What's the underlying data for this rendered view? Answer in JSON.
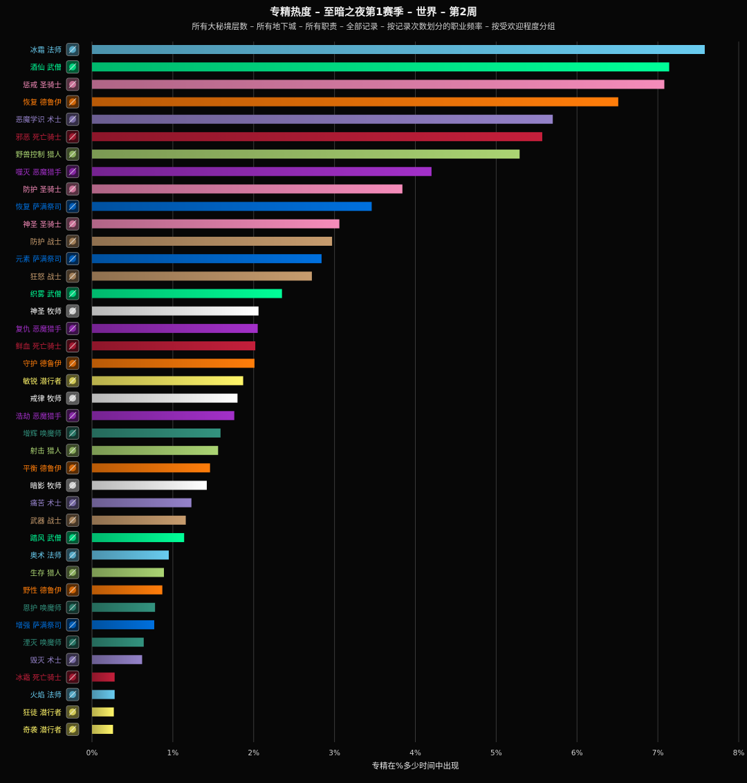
{
  "chart_data": {
    "type": "bar",
    "orientation": "horizontal",
    "title": "专精热度 – 至暗之夜第1赛季 – 世界 – 第2周",
    "subtitle": "所有大秘境层数 – 所有地下城 – 所有职责 – 全部记录 – 按记录次数划分的职业频率 – 按受欢迎程度分组",
    "xlabel": "专精在%多少时间中出现",
    "xlim": [
      0,
      8
    ],
    "xticks": [
      "0%",
      "1%",
      "2%",
      "3%",
      "4%",
      "5%",
      "6%",
      "7%",
      "8%"
    ],
    "grid": true,
    "bars": [
      {
        "label": "冰霜 法师",
        "value": 7.58,
        "color": "#69CCF0",
        "icon": "frost-mage-icon"
      },
      {
        "label": "酒仙 武僧",
        "value": 7.14,
        "color": "#00FF98",
        "icon": "brewmaster-monk-icon"
      },
      {
        "label": "惩戒 圣骑士",
        "value": 7.08,
        "color": "#F58CBA",
        "icon": "retribution-paladin-icon"
      },
      {
        "label": "恢复 德鲁伊",
        "value": 6.51,
        "color": "#FF7D0A",
        "icon": "restoration-druid-icon"
      },
      {
        "label": "恶魔学识 术士",
        "value": 5.7,
        "color": "#9482C9",
        "icon": "demonology-warlock-icon"
      },
      {
        "label": "邪恶 死亡骑士",
        "value": 5.57,
        "color": "#C41F3B",
        "icon": "unholy-death-knight-icon"
      },
      {
        "label": "野兽控制 猎人",
        "value": 5.29,
        "color": "#ABD473",
        "icon": "beast-mastery-hunter-icon"
      },
      {
        "label": "噬灭 恶魔猎手",
        "value": 4.2,
        "color": "#A330C9",
        "icon": "devourer-demon-hunter-icon"
      },
      {
        "label": "防护 圣骑士",
        "value": 3.84,
        "color": "#F58CBA",
        "icon": "protection-paladin-icon"
      },
      {
        "label": "恢复 萨满祭司",
        "value": 3.46,
        "color": "#0070DE",
        "icon": "restoration-shaman-icon"
      },
      {
        "label": "神圣 圣骑士",
        "value": 3.06,
        "color": "#F58CBA",
        "icon": "holy-paladin-icon"
      },
      {
        "label": "防护 战士",
        "value": 2.97,
        "color": "#C79C6E",
        "icon": "protection-warrior-icon"
      },
      {
        "label": "元素 萨满祭司",
        "value": 2.84,
        "color": "#0070DE",
        "icon": "elemental-shaman-icon"
      },
      {
        "label": "狂怒 战士",
        "value": 2.72,
        "color": "#C79C6E",
        "icon": "fury-warrior-icon"
      },
      {
        "label": "织雾 武僧",
        "value": 2.35,
        "color": "#00FF98",
        "icon": "mistweaver-monk-icon"
      },
      {
        "label": "神圣 牧师",
        "value": 2.06,
        "color": "#FFFFFF",
        "icon": "holy-priest-icon"
      },
      {
        "label": "复仇 恶魔猎手",
        "value": 2.05,
        "color": "#A330C9",
        "icon": "vengeance-demon-hunter-icon"
      },
      {
        "label": "鲜血 死亡骑士",
        "value": 2.02,
        "color": "#C41F3B",
        "icon": "blood-death-knight-icon"
      },
      {
        "label": "守护 德鲁伊",
        "value": 2.01,
        "color": "#FF7D0A",
        "icon": "guardian-druid-icon"
      },
      {
        "label": "敏锐 潜行者",
        "value": 1.87,
        "color": "#FFF569",
        "icon": "subtlety-rogue-icon"
      },
      {
        "label": "戒律 牧师",
        "value": 1.8,
        "color": "#FFFFFF",
        "icon": "discipline-priest-icon"
      },
      {
        "label": "浩劫 恶魔猎手",
        "value": 1.76,
        "color": "#A330C9",
        "icon": "havoc-demon-hunter-icon"
      },
      {
        "label": "增辉 唤魔师",
        "value": 1.59,
        "color": "#33937F",
        "icon": "augmentation-evoker-icon"
      },
      {
        "label": "射击 猎人",
        "value": 1.56,
        "color": "#ABD473",
        "icon": "marksmanship-hunter-icon"
      },
      {
        "label": "平衡 德鲁伊",
        "value": 1.46,
        "color": "#FF7D0A",
        "icon": "balance-druid-icon"
      },
      {
        "label": "暗影 牧师",
        "value": 1.42,
        "color": "#FFFFFF",
        "icon": "shadow-priest-icon"
      },
      {
        "label": "痛苦 术士",
        "value": 1.23,
        "color": "#9482C9",
        "icon": "affliction-warlock-icon"
      },
      {
        "label": "武器 战士",
        "value": 1.16,
        "color": "#C79C6E",
        "icon": "arms-warrior-icon"
      },
      {
        "label": "踏风 武僧",
        "value": 1.14,
        "color": "#00FF98",
        "icon": "windwalker-monk-icon"
      },
      {
        "label": "奥术 法师",
        "value": 0.95,
        "color": "#69CCF0",
        "icon": "arcane-mage-icon"
      },
      {
        "label": "生存 猎人",
        "value": 0.89,
        "color": "#ABD473",
        "icon": "survival-hunter-icon"
      },
      {
        "label": "野性 德鲁伊",
        "value": 0.87,
        "color": "#FF7D0A",
        "icon": "feral-druid-icon"
      },
      {
        "label": "恩护 唤魔师",
        "value": 0.78,
        "color": "#33937F",
        "icon": "preservation-evoker-icon"
      },
      {
        "label": "增强 萨满祭司",
        "value": 0.77,
        "color": "#0070DE",
        "icon": "enhancement-shaman-icon"
      },
      {
        "label": "湮灭 唤魔师",
        "value": 0.64,
        "color": "#33937F",
        "icon": "devastation-evoker-icon"
      },
      {
        "label": "毁灭 术士",
        "value": 0.62,
        "color": "#9482C9",
        "icon": "destruction-warlock-icon"
      },
      {
        "label": "冰霜 死亡骑士",
        "value": 0.28,
        "color": "#C41F3B",
        "icon": "frost-death-knight-icon"
      },
      {
        "label": "火焰 法师",
        "value": 0.28,
        "color": "#69CCF0",
        "icon": "fire-mage-icon"
      },
      {
        "label": "狂徒 潜行者",
        "value": 0.27,
        "color": "#FFF569",
        "icon": "outlaw-rogue-icon"
      },
      {
        "label": "奇袭 潜行者",
        "value": 0.26,
        "color": "#FFF569",
        "icon": "assassination-rogue-icon"
      }
    ]
  }
}
